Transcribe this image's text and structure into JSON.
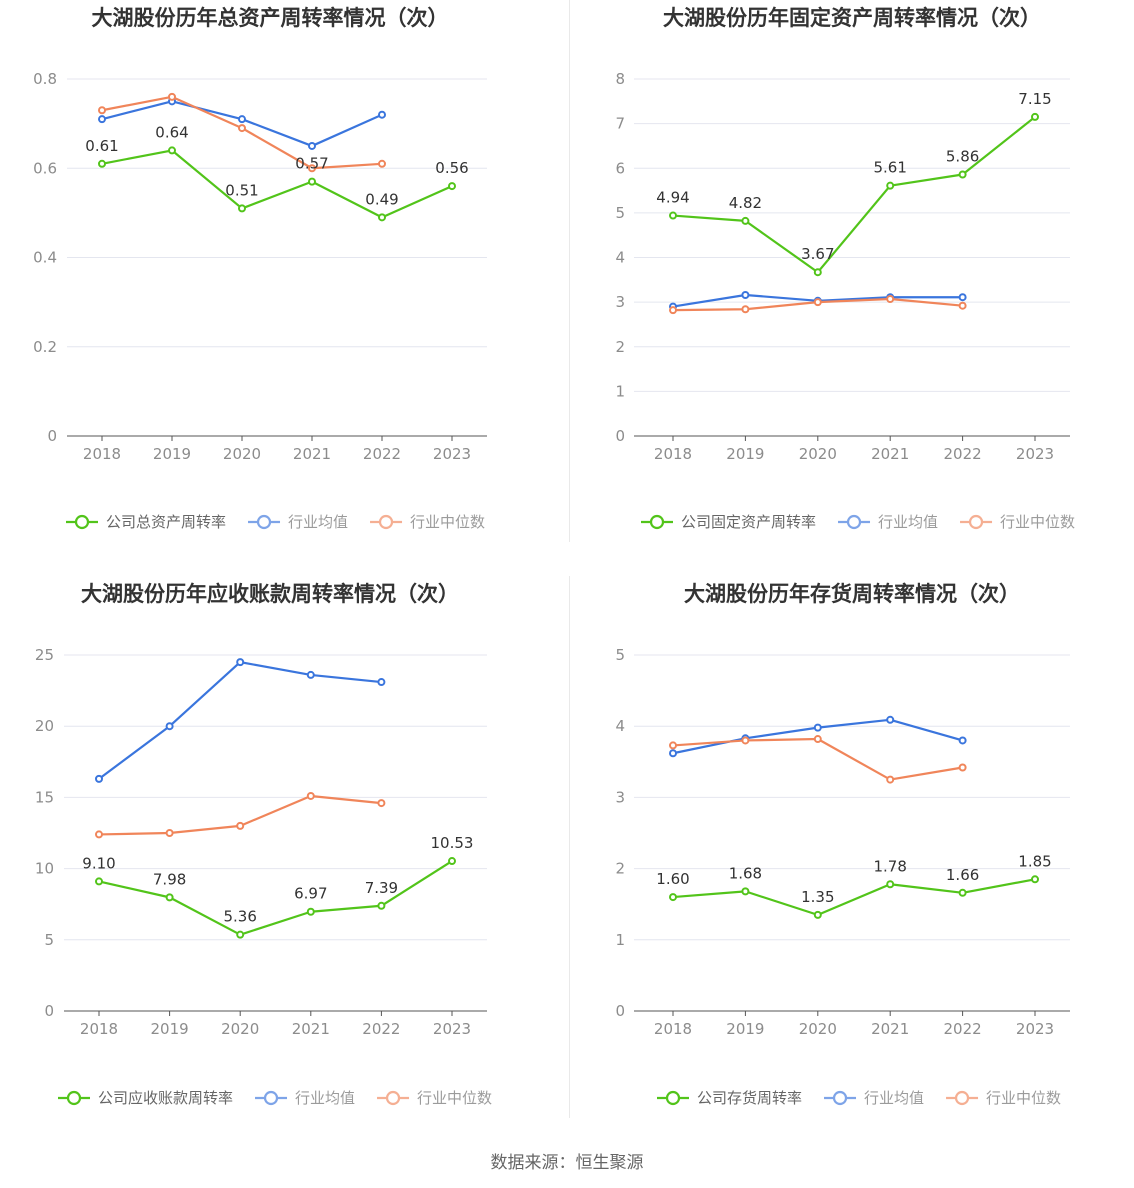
{
  "source": "数据来源：恒生聚源",
  "colors": {
    "company": "#52c41a",
    "avg": "#3a75dd",
    "median": "#f0855a",
    "grid": "#e4e6ef",
    "axis": "#555555"
  },
  "chart_data": [
    {
      "type": "line",
      "title": "大湖股份历年总资产周转率情况（次）",
      "categories": [
        "2018",
        "2019",
        "2020",
        "2021",
        "2022",
        "2023"
      ],
      "yticks": [
        "0",
        "0.2",
        "0.4",
        "0.6",
        "0.8"
      ],
      "ylim": [
        0,
        0.8
      ],
      "series": [
        {
          "name": "公司总资产周转率",
          "key": "company",
          "values": [
            0.61,
            0.64,
            0.51,
            0.57,
            0.49,
            0.56
          ],
          "labels": [
            "0.61",
            "0.64",
            "0.51",
            "0.57",
            "0.49",
            "0.56"
          ]
        },
        {
          "name": "行业均值",
          "key": "avg",
          "values": [
            0.71,
            0.75,
            0.71,
            0.65,
            0.72,
            null
          ]
        },
        {
          "name": "行业中位数",
          "key": "median",
          "values": [
            0.73,
            0.76,
            0.69,
            0.6,
            0.61,
            null
          ]
        }
      ]
    },
    {
      "type": "line",
      "title": "大湖股份历年固定资产周转率情况（次）",
      "categories": [
        "2018",
        "2019",
        "2020",
        "2021",
        "2022",
        "2023"
      ],
      "yticks": [
        "0",
        "1",
        "2",
        "3",
        "4",
        "5",
        "6",
        "7",
        "8"
      ],
      "ylim": [
        0,
        8
      ],
      "series": [
        {
          "name": "公司固定资产周转率",
          "key": "company",
          "values": [
            4.94,
            4.82,
            3.67,
            5.61,
            5.86,
            7.15
          ],
          "labels": [
            "4.94",
            "4.82",
            "3.67",
            "5.61",
            "5.86",
            "7.15"
          ]
        },
        {
          "name": "行业均值",
          "key": "avg",
          "values": [
            2.9,
            3.16,
            3.03,
            3.11,
            3.11,
            null
          ]
        },
        {
          "name": "行业中位数",
          "key": "median",
          "values": [
            2.82,
            2.84,
            3.0,
            3.07,
            2.92,
            null
          ]
        }
      ]
    },
    {
      "type": "line",
      "title": "大湖股份历年应收账款周转率情况（次）",
      "categories": [
        "2018",
        "2019",
        "2020",
        "2021",
        "2022",
        "2023"
      ],
      "yticks": [
        "0",
        "5",
        "10",
        "15",
        "20",
        "25"
      ],
      "ylim": [
        0,
        25
      ],
      "series": [
        {
          "name": "公司应收账款周转率",
          "key": "company",
          "values": [
            9.1,
            7.98,
            5.36,
            6.97,
            7.39,
            10.53
          ],
          "labels": [
            "9.10",
            "7.98",
            "5.36",
            "6.97",
            "7.39",
            "10.53"
          ]
        },
        {
          "name": "行业均值",
          "key": "avg",
          "values": [
            16.3,
            20.0,
            24.5,
            23.6,
            23.1,
            null
          ]
        },
        {
          "name": "行业中位数",
          "key": "median",
          "values": [
            12.4,
            12.5,
            13.0,
            15.1,
            14.6,
            null
          ]
        }
      ]
    },
    {
      "type": "line",
      "title": "大湖股份历年存货周转率情况（次）",
      "categories": [
        "2018",
        "2019",
        "2020",
        "2021",
        "2022",
        "2023"
      ],
      "yticks": [
        "0",
        "1",
        "2",
        "3",
        "4",
        "5"
      ],
      "ylim": [
        0,
        5
      ],
      "series": [
        {
          "name": "公司存货周转率",
          "key": "company",
          "values": [
            1.6,
            1.68,
            1.35,
            1.78,
            1.66,
            1.85
          ],
          "labels": [
            "1.60",
            "1.68",
            "1.35",
            "1.78",
            "1.66",
            "1.85"
          ]
        },
        {
          "name": "行业均值",
          "key": "avg",
          "values": [
            3.62,
            3.83,
            3.98,
            4.09,
            3.8,
            null
          ]
        },
        {
          "name": "行业中位数",
          "key": "median",
          "values": [
            3.73,
            3.8,
            3.82,
            3.25,
            3.42,
            null
          ]
        }
      ]
    }
  ]
}
